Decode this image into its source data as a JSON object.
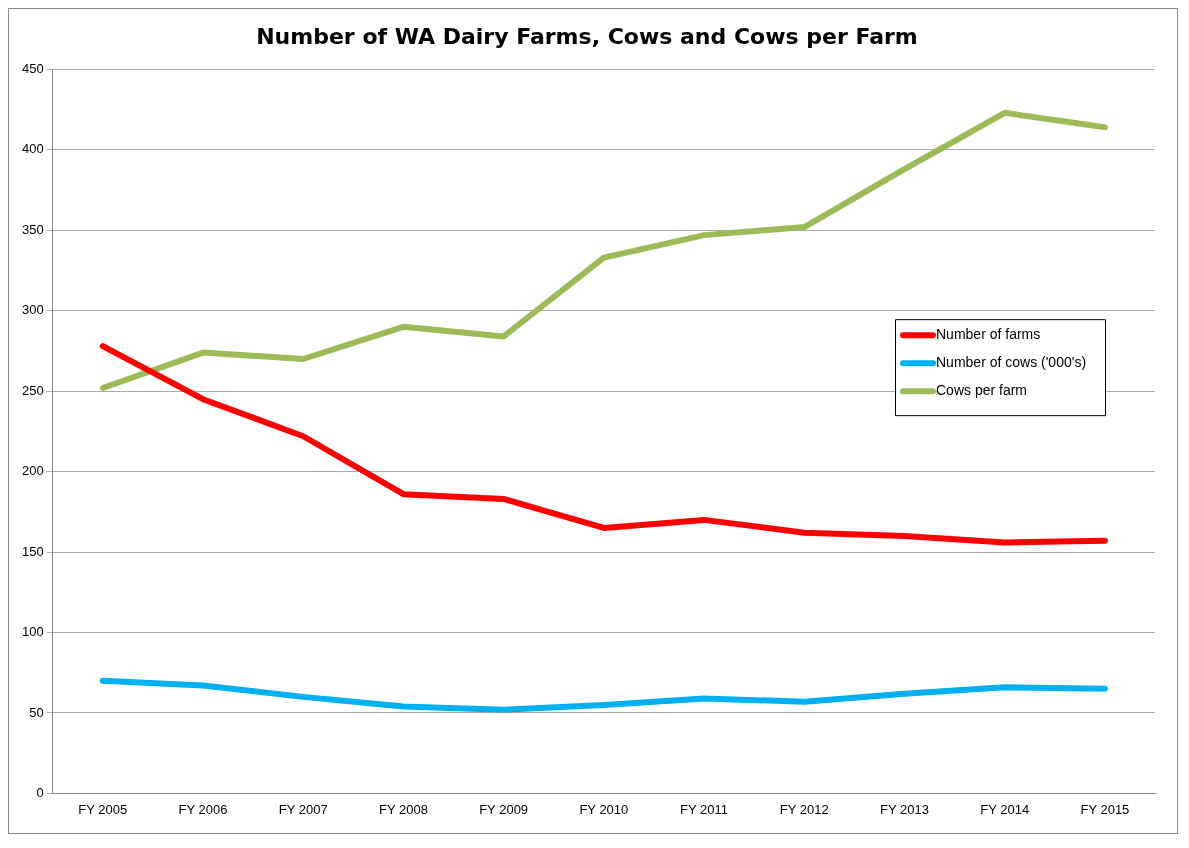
{
  "chart_data": {
    "type": "line",
    "title": "Number of WA Dairy Farms, Cows and Cows per Farm",
    "categories": [
      "FY 2005",
      "FY 2006",
      "FY 2007",
      "FY 2008",
      "FY 2009",
      "FY 2010",
      "FY 2011",
      "FY 2012",
      "FY 2013",
      "FY 2014",
      "FY 2015"
    ],
    "series": [
      {
        "name": "Number of farms",
        "color": "#ff0000",
        "values": [
          278,
          245,
          222,
          186,
          183,
          165,
          170,
          162,
          160,
          156,
          157
        ]
      },
      {
        "name": "Number of cows ('000's)",
        "color": "#00b0f0",
        "values": [
          70,
          67,
          60,
          54,
          52,
          55,
          59,
          57,
          62,
          66,
          65
        ]
      },
      {
        "name": "Cows per farm",
        "color": "#9bbb59",
        "values": [
          252,
          274,
          270,
          290,
          284,
          333,
          347,
          352,
          388,
          423,
          414
        ]
      }
    ],
    "ylim": [
      0,
      450
    ],
    "yticks": [
      0,
      50,
      100,
      150,
      200,
      250,
      300,
      350,
      400,
      450
    ],
    "grid": "y",
    "legend": "right",
    "marker": "none",
    "line_style": "solid"
  }
}
